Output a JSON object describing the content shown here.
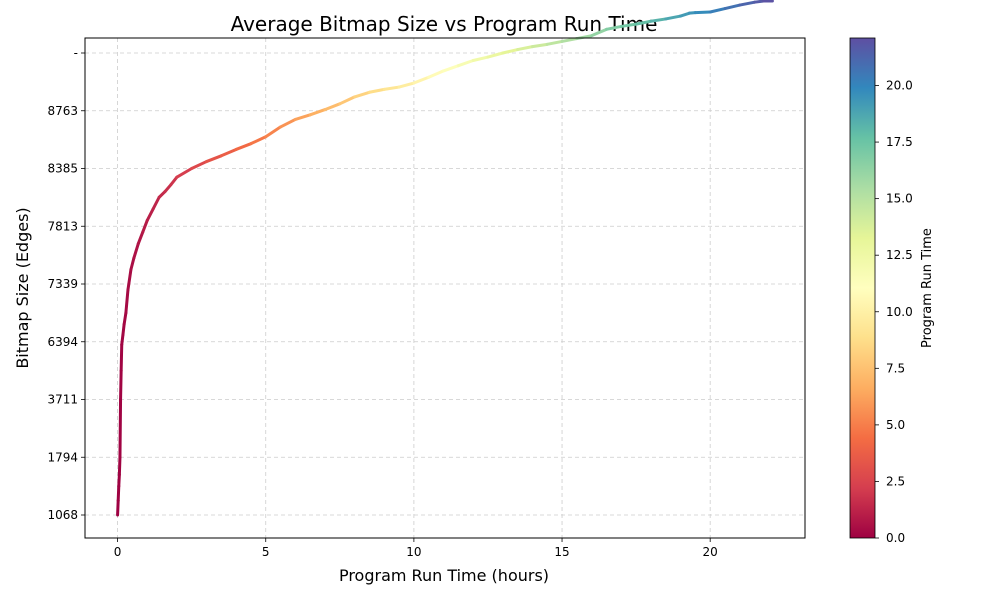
{
  "chart_data": {
    "type": "line",
    "title": "Average Bitmap Size vs Program Run Time",
    "xlabel": "Program Run Time (hours)",
    "ylabel": "Bitmap Size (Edges)",
    "xlim": [
      -1.1,
      23.2
    ],
    "x_ticks": [
      0,
      5,
      10,
      15,
      20
    ],
    "x_tick_labels": [
      "0",
      "5",
      "10",
      "15",
      "20"
    ],
    "y_tick_labels": [
      "1068",
      "1794",
      "3711",
      "6394",
      "7339",
      "7813",
      "8385",
      "8763",
      "-"
    ],
    "grid": true,
    "grid_style": "dashed",
    "colormap": "Spectral",
    "colorbar": {
      "label": "Program Run Time",
      "range": [
        0.0,
        22.1
      ],
      "tick_values": [
        0.0,
        2.5,
        5.0,
        7.5,
        10.0,
        12.5,
        15.0,
        17.5,
        20.0
      ],
      "tick_labels": [
        "0.0",
        "2.5",
        "5.0",
        "7.5",
        "10.0",
        "12.5",
        "15.0",
        "17.5",
        "20.0"
      ]
    },
    "series": [
      {
        "x": [
          0.0,
          0.02,
          0.04,
          0.06,
          0.08,
          0.1,
          0.12,
          0.14,
          0.18,
          0.22,
          0.28,
          0.35,
          0.45,
          0.55,
          0.7,
          0.85,
          1.0,
          1.2,
          1.4,
          1.6,
          1.8,
          2.0,
          2.5,
          3.0,
          3.5,
          4.0,
          4.5,
          5.0,
          5.5,
          6.0,
          6.5,
          7.0,
          7.5,
          8.0,
          8.5,
          9.0,
          9.5,
          10.0,
          10.5,
          11.0,
          11.5,
          12.0,
          12.5,
          13.0,
          13.5,
          14.0,
          14.5,
          15.0,
          15.5,
          16.0,
          16.5,
          17.0,
          17.5,
          18.0,
          18.5,
          19.0,
          19.3,
          19.5,
          20.0,
          20.5,
          21.0,
          21.5,
          21.8,
          22.1
        ],
        "y_axis_level": [
          0.0,
          0.25,
          0.5,
          0.7,
          1.0,
          2.0,
          2.5,
          2.95,
          3.12,
          3.3,
          3.5,
          3.9,
          4.25,
          4.45,
          4.7,
          4.9,
          5.1,
          5.3,
          5.5,
          5.6,
          5.72,
          5.85,
          6.0,
          6.12,
          6.22,
          6.33,
          6.43,
          6.55,
          6.72,
          6.85,
          6.93,
          7.02,
          7.12,
          7.24,
          7.32,
          7.37,
          7.41,
          7.48,
          7.58,
          7.69,
          7.78,
          7.87,
          7.93,
          8.0,
          8.06,
          8.11,
          8.15,
          8.2,
          8.25,
          8.3,
          8.41,
          8.46,
          8.5,
          8.55,
          8.59,
          8.64,
          8.69,
          8.7,
          8.71,
          8.77,
          8.83,
          8.88,
          8.9,
          8.9
        ]
      }
    ]
  }
}
